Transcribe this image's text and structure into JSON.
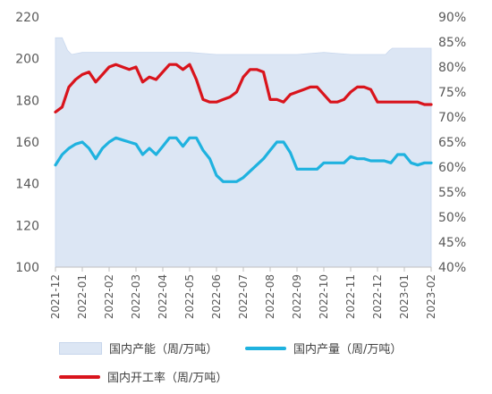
{
  "chart_data": {
    "type": "area+line",
    "title": "",
    "left_axis": {
      "min": 100,
      "max": 220,
      "ticks": [
        100,
        120,
        140,
        160,
        180,
        200,
        220
      ]
    },
    "right_axis": {
      "min": 40,
      "max": 90,
      "ticks": [
        "40%",
        "45%",
        "50%",
        "55%",
        "60%",
        "65%",
        "70%",
        "75%",
        "80%",
        "85%",
        "90%"
      ]
    },
    "categories": [
      "2021-12",
      "2022-01",
      "2022-02",
      "2022-03",
      "2022-04",
      "2022-05",
      "2022-06",
      "2022-07",
      "2022-08",
      "2022-09",
      "2022-10",
      "2022-11",
      "2022-12",
      "2023-01",
      "2023-02"
    ],
    "series": [
      {
        "name": "国内产能（周/万吨）",
        "type": "area",
        "axis": "left",
        "color": "#dce6f4",
        "x": [
          0,
          0.25,
          0.45,
          0.6,
          1,
          5,
          6,
          7,
          9,
          10,
          11,
          12.3,
          12.45,
          12.55,
          14
        ],
        "y": [
          210,
          210,
          204,
          202,
          203,
          203,
          202,
          202,
          202,
          203,
          202,
          202,
          204,
          205,
          205
        ]
      },
      {
        "name": "国内产量（周/万吨）",
        "type": "line",
        "axis": "left",
        "color": "#1fb2df",
        "x": [
          0,
          0.25,
          0.5,
          0.75,
          1,
          1.25,
          1.5,
          1.75,
          2,
          2.25,
          2.5,
          2.75,
          3,
          3.25,
          3.5,
          3.75,
          4,
          4.25,
          4.5,
          4.75,
          5,
          5.25,
          5.5,
          5.75,
          6,
          6.25,
          6.5,
          6.75,
          7,
          7.25,
          7.5,
          7.75,
          8,
          8.25,
          8.5,
          8.75,
          9,
          9.25,
          9.5,
          9.75,
          10,
          10.25,
          10.5,
          10.75,
          11,
          11.25,
          11.5,
          11.75,
          12,
          12.25,
          12.5,
          12.75,
          13,
          13.25,
          13.5,
          13.75,
          14
        ],
        "y": [
          149,
          154,
          157,
          159,
          160,
          157,
          152,
          157,
          160,
          162,
          161,
          160,
          159,
          154,
          157,
          154,
          158,
          162,
          162,
          158,
          162,
          162,
          156,
          152,
          144,
          141,
          141,
          141,
          143,
          146,
          149,
          152,
          156,
          160,
          160,
          155,
          147,
          147,
          147,
          147,
          150,
          150,
          150,
          150,
          153,
          152,
          152,
          151,
          151,
          151,
          150,
          154,
          154,
          150,
          149,
          150,
          150
        ]
      },
      {
        "name": "国内开工率（周/万吨）",
        "type": "line",
        "axis": "right",
        "color": "#d9141c",
        "x": [
          0,
          0.25,
          0.5,
          0.75,
          1,
          1.25,
          1.5,
          1.75,
          2,
          2.25,
          2.5,
          2.75,
          3,
          3.25,
          3.5,
          3.75,
          4,
          4.25,
          4.5,
          4.75,
          5,
          5.25,
          5.5,
          5.75,
          6,
          6.25,
          6.5,
          6.75,
          7,
          7.25,
          7.5,
          7.75,
          8,
          8.25,
          8.5,
          8.75,
          9,
          9.25,
          9.5,
          9.75,
          10,
          10.25,
          10.5,
          10.75,
          11,
          11.25,
          11.5,
          11.75,
          12,
          12.25,
          12.5,
          12.75,
          13,
          13.25,
          13.5,
          13.75,
          14
        ],
        "y": [
          71,
          72,
          76,
          77.5,
          78.5,
          79,
          77,
          78.5,
          80,
          80.5,
          80,
          79.5,
          80,
          77,
          78,
          77.5,
          79,
          80.5,
          80.5,
          79.5,
          80.5,
          77.5,
          73.5,
          73,
          73,
          73.5,
          74,
          75,
          78,
          79.5,
          79.5,
          79,
          73.5,
          73.5,
          73,
          74.5,
          75,
          75.5,
          76,
          76,
          74.5,
          73,
          73,
          73.5,
          75,
          76,
          76,
          75.5,
          73,
          73,
          73,
          73,
          73,
          73,
          73,
          72.5,
          72.5
        ]
      }
    ],
    "legend": [
      "国内产能（周/万吨）",
      "国内产量（周/万吨）",
      "国内开工率（周/万吨）"
    ],
    "grid": false,
    "legend_position": "bottom"
  }
}
